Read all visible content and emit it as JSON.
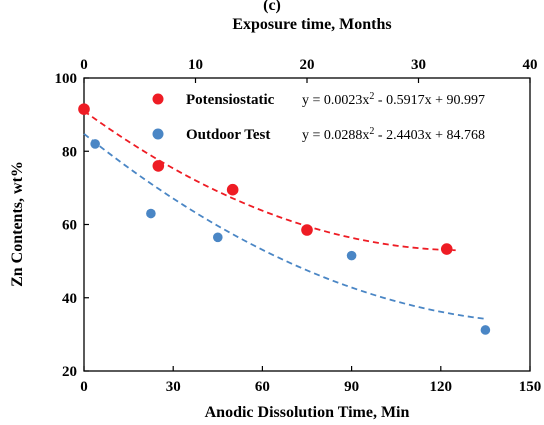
{
  "chart_data": {
    "type": "scatter",
    "panel_label": "(c)",
    "xlabel": "Anodic Dissolution Time, Min",
    "x2label": "Exposure time, Months",
    "ylabel": "Zn Contents, wt%",
    "xlim": [
      0,
      150
    ],
    "x2lim": [
      0,
      40
    ],
    "ylim": [
      20,
      100
    ],
    "xticks": [
      0,
      30,
      60,
      90,
      120,
      150
    ],
    "x2ticks": [
      0,
      10,
      20,
      30,
      40
    ],
    "yticks": [
      20,
      40,
      60,
      80,
      100
    ],
    "grid": false,
    "legend_position": "top-right",
    "series": [
      {
        "name": "Potensiostatic",
        "color": "#ee1c24",
        "axis": "bottom",
        "points": [
          {
            "x": 0,
            "y": 91.5
          },
          {
            "x": 25,
            "y": 76
          },
          {
            "x": 50,
            "y": 69.5
          },
          {
            "x": 75,
            "y": 58.5
          },
          {
            "x": 122,
            "y": 53.3
          }
        ],
        "trendline": {
          "equation_label": "y = 0.0023x",
          "equation_sup": "2",
          "equation_rest": " - 0.5917x + 90.997",
          "coefficients": [
            0.0023,
            -0.5917,
            90.997
          ],
          "x_range": [
            0,
            125
          ]
        }
      },
      {
        "name": "Outdoor Test",
        "color": "#4a86c5",
        "axis": "top",
        "points": [
          {
            "x": 1,
            "y": 82
          },
          {
            "x": 6,
            "y": 63
          },
          {
            "x": 12,
            "y": 56.5
          },
          {
            "x": 24,
            "y": 51.5
          },
          {
            "x": 36,
            "y": 31.2
          }
        ],
        "trendline": {
          "equation_label": "y = 0.0288x",
          "equation_sup": "2",
          "equation_rest": " - 2.4403x + 84.768",
          "coefficients": [
            0.0288,
            -2.4403,
            84.768
          ],
          "x_range": [
            0,
            36
          ]
        }
      }
    ]
  }
}
